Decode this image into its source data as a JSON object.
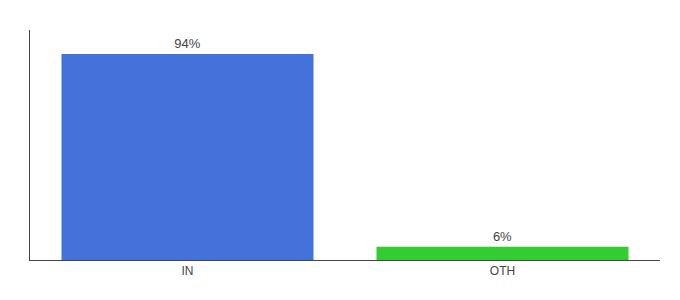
{
  "chart_data": {
    "type": "bar",
    "categories": [
      "IN",
      "OTH"
    ],
    "values": [
      94,
      6
    ],
    "value_labels": [
      "94%",
      "6%"
    ],
    "colors": [
      "#4472db",
      "#33cc33"
    ],
    "ylim": [
      0,
      105
    ],
    "grid": false,
    "tick_labels": "x"
  }
}
